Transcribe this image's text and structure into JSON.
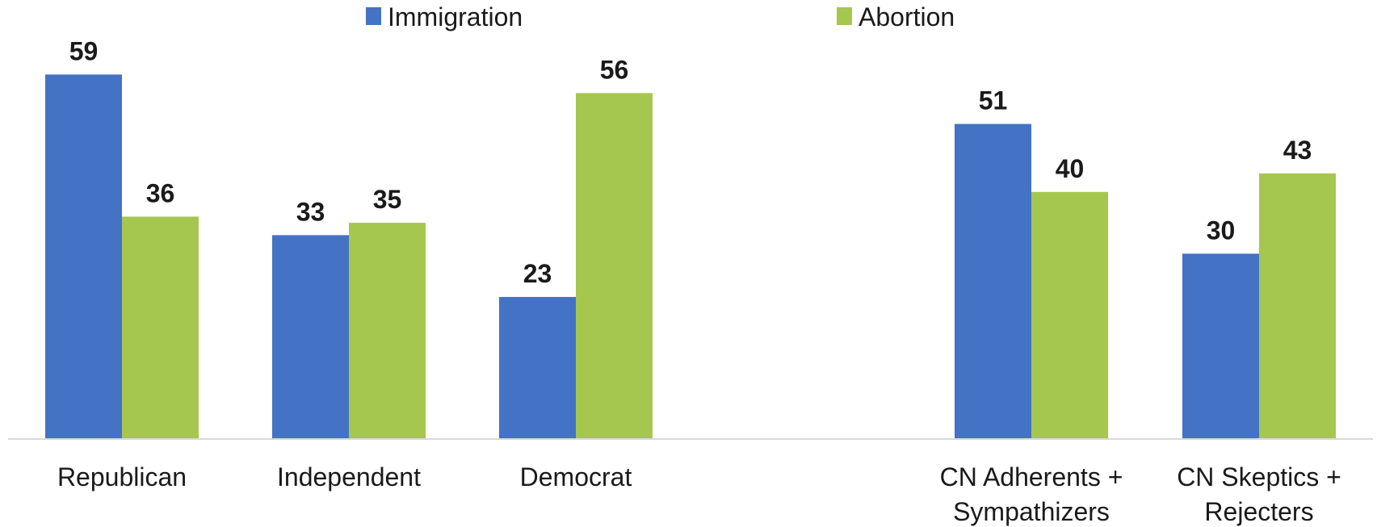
{
  "chart_data": {
    "type": "bar",
    "categories": [
      "Republican",
      "Independent",
      "Democrat",
      "CN Adherents + Sympathizers",
      "CN Skeptics + Rejecters"
    ],
    "category_lines": [
      [
        "Republican"
      ],
      [
        "Independent"
      ],
      [
        "Democrat"
      ],
      [
        "CN Adherents +",
        "Sympathizers"
      ],
      [
        "CN Skeptics +",
        "Rejecters"
      ]
    ],
    "series": [
      {
        "name": "Immigration",
        "color": "#4472c4",
        "values": [
          59,
          33,
          23,
          51,
          30
        ]
      },
      {
        "name": "Abortion",
        "color": "#a5c74f",
        "values": [
          36,
          35,
          56,
          40,
          43
        ]
      }
    ],
    "title": "",
    "xlabel": "",
    "ylabel": "",
    "ylim": [
      0,
      63
    ],
    "grid": false,
    "legend_position": "top-center"
  }
}
